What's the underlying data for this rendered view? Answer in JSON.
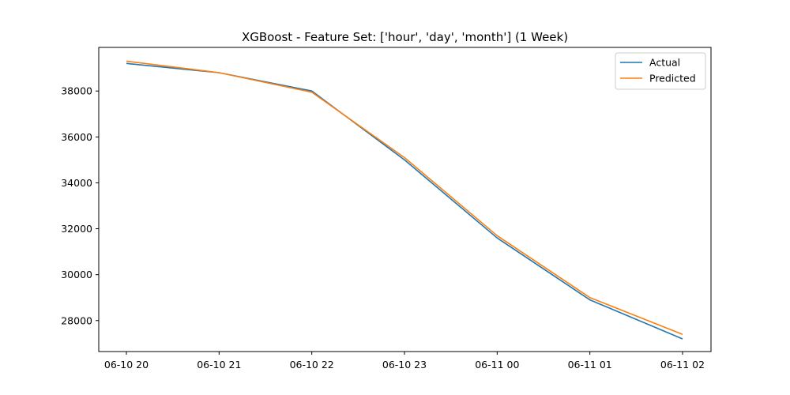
{
  "chart_data": {
    "type": "line",
    "title": "XGBoost - Feature Set: ['hour', 'day', 'month'] (1 Week)",
    "xlabel": "",
    "ylabel": "",
    "x": [
      "06-10 20",
      "06-10 21",
      "06-10 22",
      "06-10 23",
      "06-11 00",
      "06-11 01",
      "06-11 02"
    ],
    "ylim": [
      26650,
      39900
    ],
    "yticks": [
      28000,
      30000,
      32000,
      34000,
      36000,
      38000
    ],
    "grid": false,
    "legend_position": "top-right",
    "series": [
      {
        "name": "Actual",
        "color": "#1f77b4",
        "values": [
          39200,
          38800,
          38000,
          35000,
          31600,
          28900,
          27200
        ]
      },
      {
        "name": "Predicted",
        "color": "#ff7f0e",
        "values": [
          39300,
          38800,
          37950,
          35100,
          31700,
          29000,
          27400
        ]
      }
    ]
  }
}
